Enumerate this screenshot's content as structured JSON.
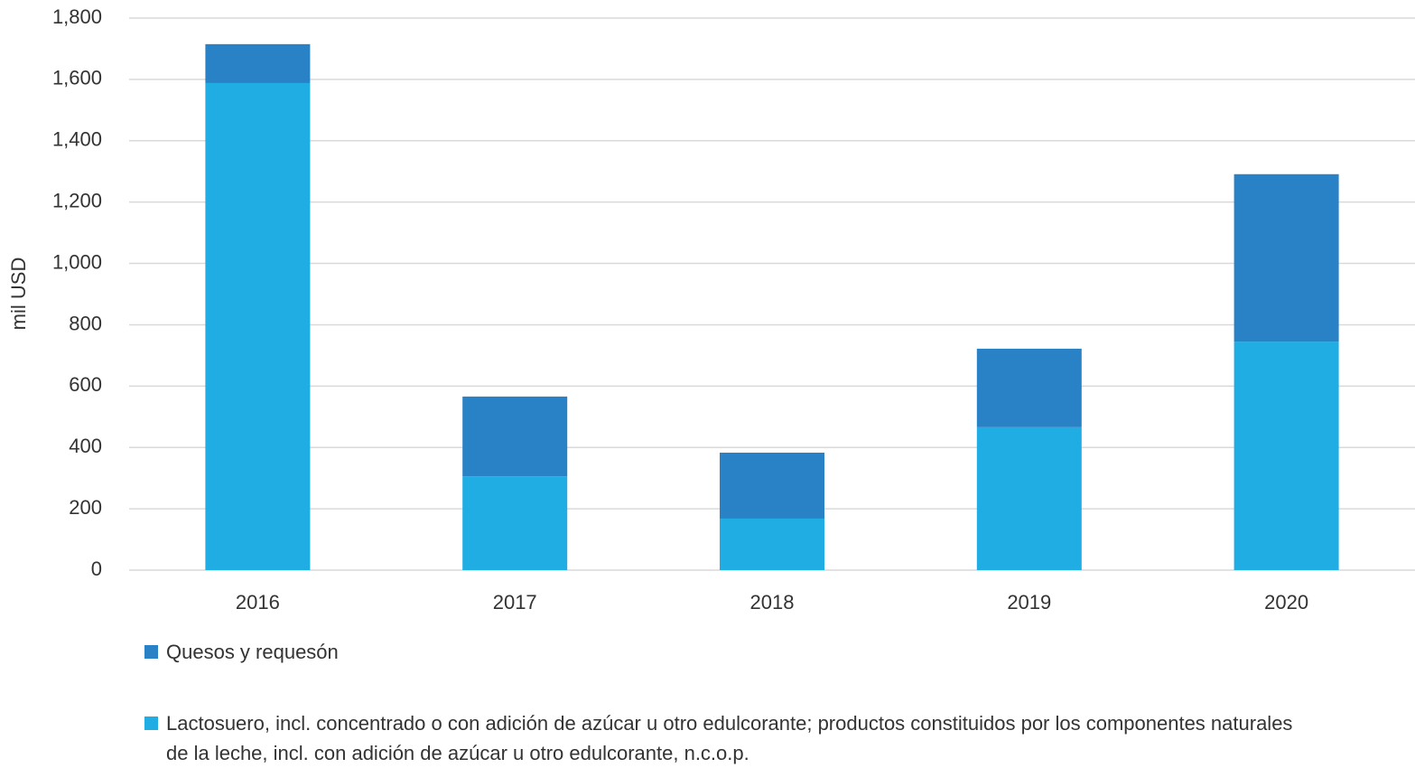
{
  "chart_data": {
    "type": "stacked_bar",
    "y_label": "mil USD",
    "categories": [
      "2016",
      "2017",
      "2018",
      "2019",
      "2020"
    ],
    "series": [
      {
        "name": "Quesos y requesón",
        "color": "#2a82c6",
        "values": [
          127,
          260,
          215,
          256,
          546
        ]
      },
      {
        "name": "Lactosuero, incl. concentrado o con adición de azúcar u otro edulcorante; productos constituidos por los componentes naturales de la leche, incl. con adición de azúcar u otro edulcorante, n.c.o.p.",
        "color": "#1fade4",
        "values": [
          1588,
          306,
          168,
          466,
          745
        ]
      }
    ],
    "ylim": [
      0,
      1800
    ],
    "yticks": [
      0,
      200,
      400,
      600,
      800,
      {
        "value": 1000,
        "label": "1,000"
      },
      {
        "value": 1200,
        "label": "1,200"
      },
      {
        "value": 1400,
        "label": "1,400"
      },
      {
        "value": 1600,
        "label": "1,600"
      },
      {
        "value": 1800,
        "label": "1,800"
      }
    ],
    "grid": true
  }
}
